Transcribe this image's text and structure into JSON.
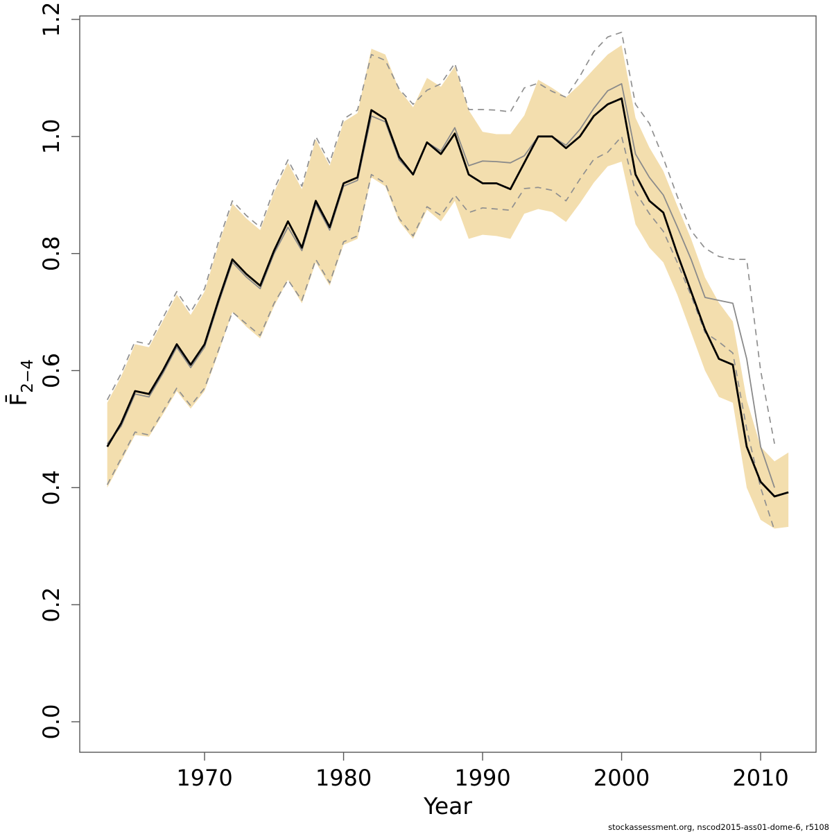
{
  "footer": "stockassessment.org, nscod2015-ass01-dome-6, r5108",
  "chart_data": {
    "type": "line",
    "title": "",
    "xlabel": "Year",
    "ylabel_main": "F̄",
    "ylabel_sub": "2−4",
    "ylabel_plain": "Fbar ages 2-4",
    "x_tick_labels": [
      "1970",
      "1980",
      "1990",
      "2000",
      "2010"
    ],
    "x_tick_values": [
      1970,
      1980,
      1990,
      2000,
      2010
    ],
    "y_tick_labels": [
      "0.0",
      "0.2",
      "0.4",
      "0.6",
      "0.8",
      "1.0",
      "1.2"
    ],
    "y_tick_values": [
      0.0,
      0.2,
      0.4,
      0.6,
      0.8,
      1.0,
      1.2
    ],
    "xlim": [
      1961.0,
      2014.0
    ],
    "ylim": [
      -0.052,
      1.206
    ],
    "grid": false,
    "legend": "none",
    "colors": {
      "band": "#F3DEAE",
      "dashed_ci": "#8f8f8f",
      "previous_line": "#8a8a8a",
      "current_line": "#000000",
      "axis_box": "#555555"
    },
    "years": [
      1963,
      1964,
      1965,
      1966,
      1967,
      1968,
      1969,
      1970,
      1971,
      1972,
      1973,
      1974,
      1975,
      1976,
      1977,
      1978,
      1979,
      1980,
      1981,
      1982,
      1983,
      1984,
      1985,
      1986,
      1987,
      1988,
      1989,
      1990,
      1991,
      1992,
      1993,
      1994,
      1995,
      1996,
      1997,
      1998,
      1999,
      2000,
      2001,
      2002,
      2003,
      2004,
      2005,
      2006,
      2007,
      2008,
      2009,
      2010,
      2011,
      2012
    ],
    "band": {
      "name": "current-run-confidence-band",
      "lower": [
        0.4,
        0.445,
        0.49,
        0.487,
        0.525,
        0.565,
        0.535,
        0.565,
        0.63,
        0.7,
        0.675,
        0.655,
        0.71,
        0.755,
        0.715,
        0.785,
        0.745,
        0.815,
        0.825,
        0.93,
        0.915,
        0.855,
        0.825,
        0.875,
        0.855,
        0.89,
        0.825,
        0.832,
        0.83,
        0.825,
        0.868,
        0.876,
        0.871,
        0.854,
        0.886,
        0.921,
        0.949,
        0.957,
        0.85,
        0.81,
        0.785,
        0.73,
        0.665,
        0.6,
        0.555,
        0.545,
        0.4,
        0.345,
        0.33,
        0.333
      ],
      "upper": [
        0.545,
        0.59,
        0.645,
        0.64,
        0.685,
        0.73,
        0.695,
        0.735,
        0.815,
        0.885,
        0.86,
        0.84,
        0.905,
        0.955,
        0.91,
        0.995,
        0.95,
        1.025,
        1.04,
        1.15,
        1.14,
        1.08,
        1.05,
        1.1,
        1.085,
        1.12,
        1.045,
        1.008,
        1.004,
        1.004,
        1.036,
        1.097,
        1.083,
        1.067,
        1.089,
        1.115,
        1.14,
        1.156,
        1.032,
        0.981,
        0.941,
        0.882,
        0.825,
        0.759,
        0.716,
        0.684,
        0.55,
        0.47,
        0.445,
        0.46
      ]
    },
    "series": [
      {
        "name": "current-assessment-fbar",
        "style": "solid",
        "color": "#000000",
        "width": 2.8,
        "years_start": 1963,
        "values": [
          0.47,
          0.51,
          0.565,
          0.56,
          0.6,
          0.645,
          0.61,
          0.645,
          0.72,
          0.79,
          0.765,
          0.745,
          0.805,
          0.855,
          0.81,
          0.89,
          0.845,
          0.92,
          0.93,
          1.045,
          1.03,
          0.965,
          0.935,
          0.99,
          0.97,
          1.005,
          0.935,
          0.92,
          0.92,
          0.91,
          0.955,
          1.0,
          1.0,
          0.98,
          1.0,
          1.035,
          1.055,
          1.065,
          0.935,
          0.89,
          0.87,
          0.8,
          0.735,
          0.67,
          0.62,
          0.61,
          0.47,
          0.41,
          0.385,
          0.392
        ]
      },
      {
        "name": "previous-assessment-fbar",
        "style": "solid",
        "color": "#8a8a8a",
        "width": 1.8,
        "years_start": 1963,
        "values": [
          0.475,
          0.505,
          0.56,
          0.555,
          0.595,
          0.64,
          0.605,
          0.64,
          0.715,
          0.785,
          0.76,
          0.74,
          0.8,
          0.845,
          0.805,
          0.885,
          0.84,
          0.915,
          0.925,
          1.035,
          1.025,
          0.96,
          0.935,
          0.99,
          0.975,
          1.015,
          0.95,
          0.958,
          0.957,
          0.955,
          0.967,
          1.0,
          1.0,
          0.985,
          1.012,
          1.048,
          1.078,
          1.09,
          0.97,
          0.93,
          0.9,
          0.846,
          0.79,
          0.725,
          0.72,
          0.715,
          0.62,
          0.47,
          0.4
        ]
      },
      {
        "name": "previous-assessment-ci-lower",
        "style": "dashed",
        "color": "#8f8f8f",
        "width": 1.7,
        "years_start": 1963,
        "values": [
          0.405,
          0.45,
          0.495,
          0.49,
          0.53,
          0.57,
          0.54,
          0.57,
          0.635,
          0.7,
          0.68,
          0.66,
          0.715,
          0.755,
          0.72,
          0.79,
          0.75,
          0.82,
          0.83,
          0.935,
          0.92,
          0.86,
          0.83,
          0.88,
          0.865,
          0.9,
          0.87,
          0.878,
          0.876,
          0.874,
          0.911,
          0.913,
          0.908,
          0.89,
          0.927,
          0.961,
          0.973,
          1.0,
          0.905,
          0.868,
          0.838,
          0.785,
          0.728,
          0.665,
          0.649,
          0.63,
          0.5,
          0.4,
          0.327
        ]
      },
      {
        "name": "previous-assessment-ci-upper",
        "style": "dashed",
        "color": "#8f8f8f",
        "width": 1.7,
        "years_start": 1963,
        "values": [
          0.55,
          0.595,
          0.65,
          0.645,
          0.69,
          0.735,
          0.7,
          0.74,
          0.82,
          0.89,
          0.865,
          0.845,
          0.91,
          0.96,
          0.915,
          1.0,
          0.955,
          1.03,
          1.045,
          1.14,
          1.13,
          1.081,
          1.055,
          1.079,
          1.09,
          1.125,
          1.046,
          1.046,
          1.045,
          1.042,
          1.083,
          1.091,
          1.077,
          1.067,
          1.103,
          1.145,
          1.17,
          1.178,
          1.055,
          1.022,
          0.963,
          0.898,
          0.839,
          0.809,
          0.795,
          0.79,
          0.79,
          0.6,
          0.475
        ]
      }
    ]
  }
}
